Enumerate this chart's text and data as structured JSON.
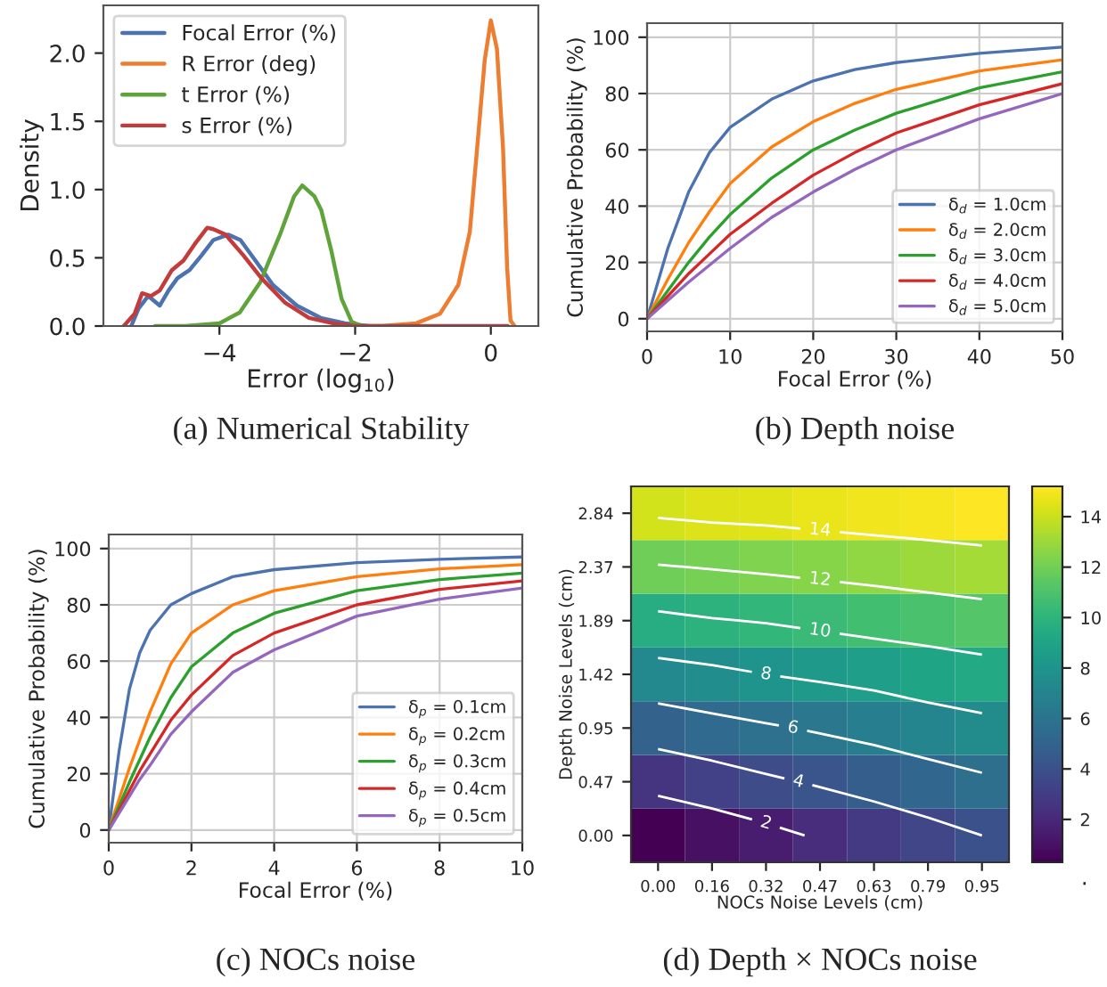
{
  "chart_data": [
    {
      "type": "line",
      "title": "(a) Numerical Stability",
      "xlabel": "Error (log$_{10}$)",
      "ylabel": "Density",
      "xlim": [
        -5.71,
        0.7
      ],
      "ylim": [
        0,
        2.35
      ],
      "xticks": [
        {
          "value": -4,
          "label": "−4"
        },
        {
          "value": -2,
          "label": "−2"
        },
        0
      ],
      "yticks": [
        {
          "value": 0,
          "label": "0.0"
        },
        {
          "value": 0.5,
          "label": "0.5"
        },
        {
          "value": 1,
          "label": "1.0"
        },
        {
          "value": 1.5,
          "label": "1.5"
        },
        {
          "value": 2,
          "label": "2.0"
        }
      ],
      "legend": "top left",
      "series": [
        {
          "name": "Focal Error (%)",
          "color": "#4c72b0",
          "x": [
            -5.3,
            -5.19,
            -5.05,
            -4.88,
            -4.75,
            -4.62,
            -4.44,
            -4.26,
            -4.09,
            -3.87,
            -3.69,
            -3.47,
            -3.21,
            -2.86,
            -2.51,
            -2.15,
            -1.8
          ],
          "values": [
            0,
            0.13,
            0.22,
            0.15,
            0.26,
            0.35,
            0.41,
            0.52,
            0.63,
            0.67,
            0.63,
            0.48,
            0.3,
            0.15,
            0.06,
            0.02,
            0
          ]
        },
        {
          "name": "R Error (deg)",
          "color": "#ed7d31",
          "x": [
            -2.3,
            -1.6,
            -1.1,
            -0.75,
            -0.48,
            -0.31,
            -0.18,
            -0.09,
            0,
            0.09,
            0.18,
            0.24,
            0.29,
            0.35
          ],
          "values": [
            0,
            0,
            0.02,
            0.09,
            0.3,
            0.69,
            1.43,
            1.95,
            2.24,
            2.03,
            1.3,
            0.43,
            0.04,
            0
          ]
        },
        {
          "name": "t Error (%)",
          "color": "#5fa43a",
          "x": [
            -4.95,
            -4.5,
            -4.0,
            -3.7,
            -3.4,
            -3.1,
            -2.9,
            -2.78,
            -2.6,
            -2.5,
            -2.35,
            -2.2,
            -2.05,
            -1.9
          ],
          "values": [
            0,
            0,
            0.02,
            0.1,
            0.32,
            0.68,
            0.95,
            1.03,
            0.95,
            0.85,
            0.55,
            0.2,
            0.03,
            0
          ]
        },
        {
          "name": "s Error (%)",
          "color": "#c43b3b",
          "x": [
            -5.41,
            -5.25,
            -5.14,
            -5.01,
            -4.88,
            -4.7,
            -4.53,
            -4.35,
            -4.18,
            -4.09,
            -3.91,
            -3.65,
            -3.38,
            -3.03,
            -2.68,
            -2.33,
            -1.98,
            -1.0,
            0.25
          ],
          "values": [
            0,
            0.09,
            0.24,
            0.22,
            0.26,
            0.41,
            0.48,
            0.61,
            0.72,
            0.71,
            0.67,
            0.52,
            0.35,
            0.17,
            0.06,
            0.02,
            0,
            0,
            0
          ]
        }
      ]
    },
    {
      "type": "line",
      "title": "(b) Depth noise",
      "xlabel": "Focal Error (%)",
      "ylabel": "Cumulative Probability (%)",
      "xlim": [
        0,
        50
      ],
      "ylim": [
        -4.5,
        105
      ],
      "xticks": [
        0,
        10,
        20,
        30,
        40,
        50
      ],
      "yticks": [
        0,
        20,
        40,
        60,
        80,
        100
      ],
      "grid": true,
      "legend": "bottom right",
      "x": [
        0,
        2.5,
        5,
        7.5,
        10,
        15,
        20,
        25,
        30,
        40,
        50
      ],
      "series": [
        {
          "name": "δ$_{d}$ = 1.0cm",
          "color": "#4c72b0",
          "values": [
            0,
            25,
            45,
            59,
            68,
            78,
            84.5,
            88.5,
            91,
            94.3,
            96.5
          ]
        },
        {
          "name": "δ$_{d}$ = 2.0cm",
          "color": "#ff7f0e",
          "values": [
            0,
            14,
            27,
            38,
            48,
            61,
            70,
            76.5,
            81.5,
            88,
            92
          ]
        },
        {
          "name": "δ$_{d}$ = 3.0cm",
          "color": "#2ca02c",
          "values": [
            0,
            10,
            20,
            29,
            37,
            50,
            60,
            67,
            73,
            82,
            87.7
          ]
        },
        {
          "name": "δ$_{d}$ = 4.0cm",
          "color": "#d62728",
          "values": [
            0,
            8,
            16,
            23,
            30,
            41,
            51,
            59,
            66,
            76,
            83.5
          ]
        },
        {
          "name": "δ$_{d}$ = 5.0cm",
          "color": "#9467bd",
          "values": [
            0,
            6.5,
            13,
            19,
            25,
            36,
            45,
            53,
            60,
            71,
            80
          ]
        }
      ]
    },
    {
      "type": "line",
      "title": "(c) NOCs noise",
      "xlabel": "Focal Error (%)",
      "ylabel": "Cumulative Probability (%)",
      "xlim": [
        0,
        10
      ],
      "ylim": [
        -4.5,
        105
      ],
      "xticks": [
        0,
        2,
        4,
        6,
        8,
        10
      ],
      "yticks": [
        0,
        20,
        40,
        60,
        80,
        100
      ],
      "grid": true,
      "legend": "bottom right",
      "x": [
        0,
        0.25,
        0.5,
        0.75,
        1,
        1.5,
        2,
        3,
        4,
        6,
        8,
        10
      ],
      "series": [
        {
          "name": "δ$_{p}$ = 0.1cm",
          "color": "#4c72b0",
          "values": [
            0,
            28,
            50,
            63,
            71,
            80,
            84,
            90,
            92.5,
            95,
            96.2,
            97
          ]
        },
        {
          "name": "δ$_{p}$ = 0.2cm",
          "color": "#ff7f0e",
          "values": [
            0,
            11,
            22,
            32,
            42,
            59,
            70,
            80,
            85,
            90,
            92.8,
            94.3
          ]
        },
        {
          "name": "δ$_{p}$ = 0.3cm",
          "color": "#2ca02c",
          "values": [
            0,
            8.5,
            17,
            25,
            33,
            47,
            58,
            70,
            77,
            85,
            89,
            91.3
          ]
        },
        {
          "name": "δ$_{p}$ = 0.4cm",
          "color": "#d62728",
          "values": [
            0,
            7,
            14,
            21,
            27,
            39,
            48,
            62,
            70,
            80,
            85.5,
            88.5
          ]
        },
        {
          "name": "δ$_{p}$ = 0.5cm",
          "color": "#9467bd",
          "values": [
            0,
            6,
            12,
            18,
            23,
            34,
            42,
            56,
            64,
            76,
            82,
            86
          ]
        }
      ]
    },
    {
      "type": "heatmap",
      "title": "(d) Depth × NOCs noise",
      "xlabel": "NOCs Noise Levels (cm)",
      "ylabel": "Depth Noise Levels (cm)",
      "categories": [
        "0.00",
        "0.16",
        "0.32",
        "0.47",
        "0.63",
        "0.79",
        "0.95"
      ],
      "y_categories": [
        "2.84",
        "2.37",
        "1.89",
        "1.42",
        "0.95",
        "0.47",
        "0.00"
      ],
      "cells": [
        [
          14.2,
          14.4,
          14.5,
          14.7,
          14.9,
          15.0,
          15.2
        ],
        [
          11.9,
          12.1,
          12.3,
          12.5,
          12.7,
          13.0,
          13.2
        ],
        [
          9.6,
          9.9,
          10.1,
          10.4,
          10.7,
          10.9,
          11.2
        ],
        [
          7.3,
          7.6,
          8.0,
          8.3,
          8.6,
          9.0,
          9.3
        ],
        [
          4.9,
          5.4,
          5.8,
          6.2,
          6.6,
          7.1,
          7.5
        ],
        [
          2.6,
          3.1,
          3.7,
          4.2,
          4.7,
          5.2,
          5.7
        ],
        [
          0.3,
          0.9,
          1.5,
          2.2,
          2.8,
          3.4,
          4.0
        ]
      ],
      "clim": [
        0.3,
        15.2
      ],
      "cticks": [
        2,
        4,
        6,
        8,
        10,
        12,
        14
      ],
      "annotations": [
        "2",
        "4",
        "6",
        "8",
        "10",
        "12",
        "14",
        "."
      ]
    }
  ]
}
